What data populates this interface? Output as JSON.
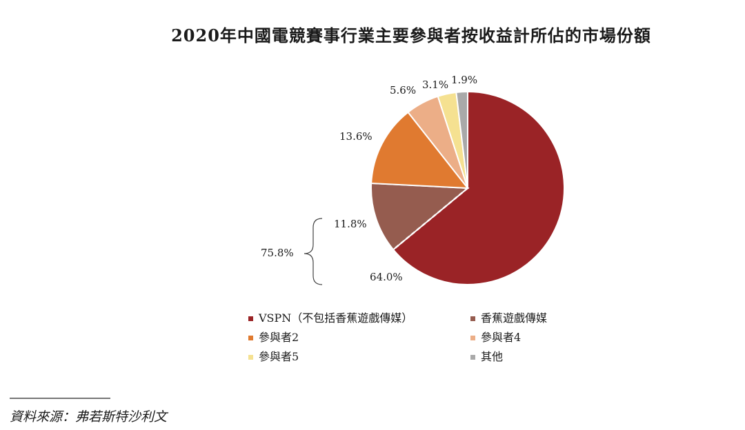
{
  "chart_data": {
    "type": "pie",
    "title": "2020年中國電競賽事行業主要參與者按收益計所佔的市場份額",
    "start_angle_deg": 0,
    "direction": "clockwise",
    "series": [
      {
        "name": "VSPN（不包括香蕉遊戲傳媒）",
        "value": 64.0,
        "label": "64.0%",
        "color": "#9a2326"
      },
      {
        "name": "香蕉遊戲傳媒",
        "value": 11.8,
        "label": "11.8%",
        "color": "#955c4f"
      },
      {
        "name": "參與者2",
        "value": 13.6,
        "label": "13.6%",
        "color": "#e07a30"
      },
      {
        "name": "參與者4",
        "value": 5.6,
        "label": "5.6%",
        "color": "#ecae87"
      },
      {
        "name": "參與者5",
        "value": 3.1,
        "label": "3.1%",
        "color": "#f5e191"
      },
      {
        "name": "其他",
        "value": 1.9,
        "label": "1.9%",
        "color": "#a9a9a9"
      }
    ],
    "combined_annotation": {
      "label": "75.8%",
      "covers": [
        "VSPN（不包括香蕉遊戲傳媒）",
        "香蕉遊戲傳媒"
      ]
    },
    "legend": {
      "placement": "bottom",
      "columns": 2
    }
  },
  "source": "資料來源：弗若斯特沙利文"
}
